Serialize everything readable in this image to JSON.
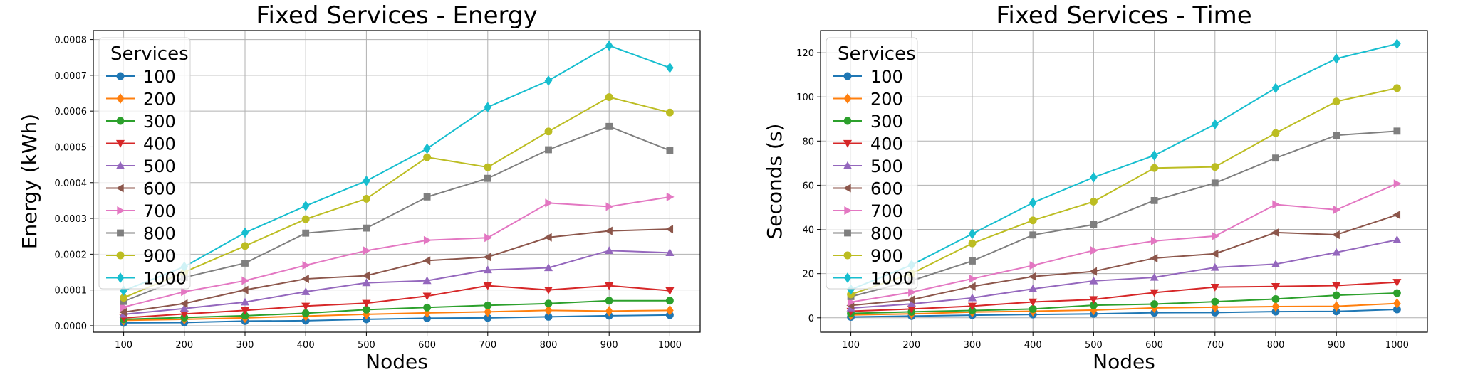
{
  "chart_data": [
    {
      "type": "line",
      "title": "Fixed Services - Energy",
      "xlabel": "Nodes",
      "ylabel": "Energy (kWh)",
      "x": [
        100,
        200,
        300,
        400,
        500,
        600,
        700,
        800,
        900,
        1000
      ],
      "xticks": [
        "100",
        "200",
        "300",
        "400",
        "500",
        "600",
        "700",
        "800",
        "900",
        "1000"
      ],
      "yticks": [
        "0.0000",
        "0.0001",
        "0.0002",
        "0.0003",
        "0.0004",
        "0.0005",
        "0.0006",
        "0.0007",
        "0.0008"
      ],
      "ytick_values": [
        0,
        0.0001,
        0.0002,
        0.0003,
        0.0004,
        0.0005,
        0.0006,
        0.0007,
        0.0008
      ],
      "xlim": [
        50,
        1050
      ],
      "ylim": [
        -1.8e-05,
        0.000825
      ],
      "grid": true,
      "legend_title": "Services",
      "legend_position": "upper-left",
      "series": [
        {
          "name": "100",
          "color": "#1f77b4",
          "marker": "circle",
          "values": [
            8e-06,
            9e-06,
            1.3e-05,
            1.4e-05,
            1.8e-05,
            2.1e-05,
            2.2e-05,
            2.5e-05,
            2.8e-05,
            3e-05
          ]
        },
        {
          "name": "200",
          "color": "#ff7f0e",
          "marker": "diamond",
          "values": [
            1.5e-05,
            1.8e-05,
            2.2e-05,
            2.7e-05,
            3.2e-05,
            3.6e-05,
            3.9e-05,
            4.3e-05,
            4.1e-05,
            4.3e-05
          ]
        },
        {
          "name": "300",
          "color": "#2ca02c",
          "marker": "circle",
          "values": [
            1.8e-05,
            2.3e-05,
            2.8e-05,
            3.5e-05,
            4.5e-05,
            5.1e-05,
            5.7e-05,
            6.2e-05,
            7e-05,
            7e-05
          ]
        },
        {
          "name": "400",
          "color": "#d62728",
          "marker": "triangle-down",
          "values": [
            2.2e-05,
            3.3e-05,
            4.3e-05,
            5.5e-05,
            6.3e-05,
            8.3e-05,
            0.000112,
            0.0001,
            0.000112,
            9.8e-05
          ]
        },
        {
          "name": "500",
          "color": "#9467bd",
          "marker": "triangle-up",
          "values": [
            3.2e-05,
            4.8e-05,
            6.6e-05,
            9.5e-05,
            0.00012,
            0.000126,
            0.000156,
            0.000162,
            0.00021,
            0.000204
          ]
        },
        {
          "name": "600",
          "color": "#8c564b",
          "marker": "triangle-left",
          "values": [
            3.8e-05,
            6.2e-05,
            0.0001,
            0.000131,
            0.00014,
            0.000182,
            0.000192,
            0.000247,
            0.000265,
            0.00027
          ]
        },
        {
          "name": "700",
          "color": "#e377c2",
          "marker": "triangle-right",
          "values": [
            5.2e-05,
            9.5e-05,
            0.000126,
            0.000169,
            0.00021,
            0.000239,
            0.000246,
            0.000343,
            0.000333,
            0.00036
          ]
        },
        {
          "name": "800",
          "color": "#7f7f7f",
          "marker": "square",
          "values": [
            6.8e-05,
            0.000135,
            0.000175,
            0.000259,
            0.000273,
            0.00036,
            0.000412,
            0.000492,
            0.000557,
            0.00049
          ]
        },
        {
          "name": "900",
          "color": "#bcbd22",
          "marker": "circle",
          "values": [
            7.8e-05,
            0.00015,
            0.000223,
            0.000298,
            0.000355,
            0.000471,
            0.000443,
            0.000543,
            0.000639,
            0.000596
          ]
        },
        {
          "name": "1000",
          "color": "#17becf",
          "marker": "diamond",
          "values": [
            9.8e-05,
            0.000165,
            0.00026,
            0.000335,
            0.000405,
            0.000495,
            0.000611,
            0.000685,
            0.000783,
            0.000721
          ]
        }
      ]
    },
    {
      "type": "line",
      "title": "Fixed Services - Time",
      "xlabel": "Nodes",
      "ylabel": "Seconds (s)",
      "x": [
        100,
        200,
        300,
        400,
        500,
        600,
        700,
        800,
        900,
        1000
      ],
      "xticks": [
        "100",
        "200",
        "300",
        "400",
        "500",
        "600",
        "700",
        "800",
        "900",
        "1000"
      ],
      "yticks": [
        "0",
        "20",
        "40",
        "60",
        "80",
        "100",
        "120"
      ],
      "ytick_values": [
        0,
        20,
        40,
        60,
        80,
        100,
        120
      ],
      "xlim": [
        50,
        1050
      ],
      "ylim": [
        -6.5,
        130
      ],
      "grid": true,
      "legend_title": "Services",
      "legend_position": "upper-left",
      "series": [
        {
          "name": "100",
          "color": "#1f77b4",
          "marker": "circle",
          "values": [
            0.4,
            0.8,
            1.2,
            1.5,
            1.8,
            2.3,
            2.4,
            2.8,
            2.9,
            3.8
          ]
        },
        {
          "name": "200",
          "color": "#ff7f0e",
          "marker": "diamond",
          "values": [
            1.3,
            1.8,
            2.6,
            3.0,
            3.5,
            4.5,
            4.8,
            5.1,
            5.2,
            6.5
          ]
        },
        {
          "name": "300",
          "color": "#2ca02c",
          "marker": "circle",
          "values": [
            2.0,
            2.7,
            3.3,
            4.0,
            5.7,
            6.2,
            7.3,
            8.5,
            10.2,
            11.2
          ]
        },
        {
          "name": "400",
          "color": "#d62728",
          "marker": "triangle-down",
          "values": [
            3.0,
            4.0,
            5.3,
            7.2,
            8.3,
            11.4,
            13.9,
            14.2,
            14.6,
            16.1
          ]
        },
        {
          "name": "500",
          "color": "#9467bd",
          "marker": "triangle-up",
          "values": [
            4.4,
            6.3,
            9.0,
            13.1,
            16.7,
            18.3,
            22.8,
            24.3,
            29.6,
            35.3
          ]
        },
        {
          "name": "600",
          "color": "#8c564b",
          "marker": "triangle-left",
          "values": [
            5.6,
            8.2,
            14.2,
            18.7,
            21.0,
            27.0,
            29.0,
            38.6,
            37.6,
            46.6
          ]
        },
        {
          "name": "700",
          "color": "#e377c2",
          "marker": "triangle-right",
          "values": [
            7.1,
            11.6,
            17.7,
            23.7,
            30.5,
            34.8,
            37.0,
            51.3,
            48.9,
            60.7
          ]
        },
        {
          "name": "800",
          "color": "#7f7f7f",
          "marker": "square",
          "values": [
            9.6,
            16.8,
            25.7,
            37.5,
            42.2,
            53.1,
            61.0,
            72.3,
            82.6,
            84.5
          ]
        },
        {
          "name": "900",
          "color": "#bcbd22",
          "marker": "circle",
          "values": [
            10.6,
            20.0,
            33.7,
            44.1,
            52.6,
            67.8,
            68.3,
            83.6,
            97.9,
            104.0
          ]
        },
        {
          "name": "1000",
          "color": "#17becf",
          "marker": "diamond",
          "values": [
            12.8,
            23.9,
            38.0,
            52.1,
            63.6,
            73.5,
            87.6,
            104.0,
            117.3,
            124.0
          ]
        }
      ]
    }
  ]
}
